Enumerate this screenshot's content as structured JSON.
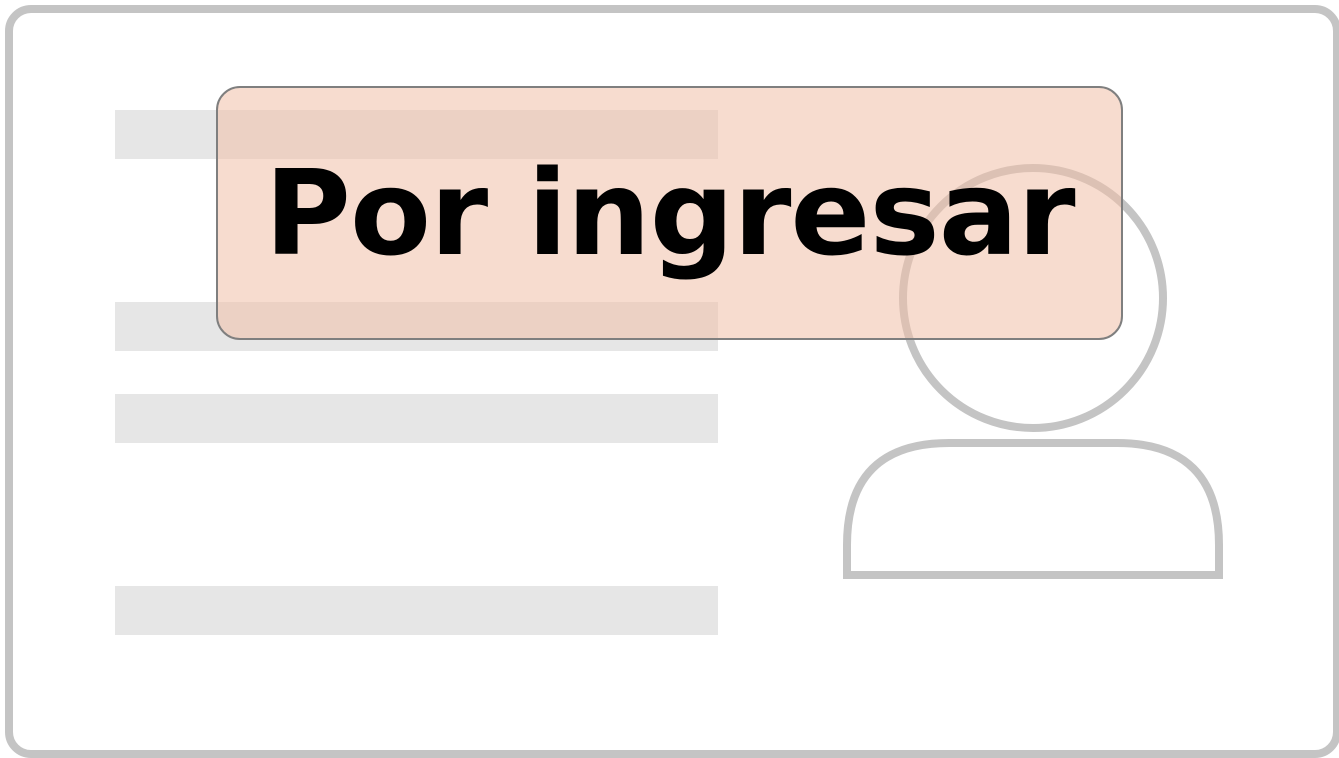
{
  "badge": {
    "label": "Por ingresar"
  },
  "placeholder": {
    "line_count": 4
  },
  "icons": {
    "avatar": "user-silhouette-icon"
  },
  "colors": {
    "card_border": "#c4c4c4",
    "placeholder_line": "#e6e6e6",
    "avatar_stroke": "#c4c4c4",
    "badge_fill": "#f0c0a8",
    "badge_border": "#7f7f7f",
    "badge_text": "#000000"
  }
}
